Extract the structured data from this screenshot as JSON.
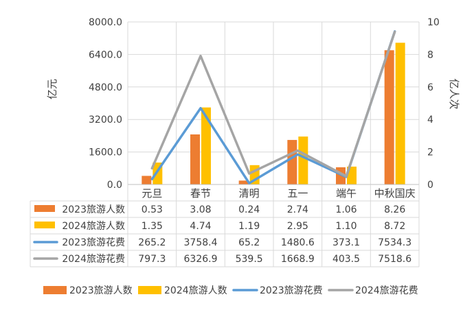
{
  "chart_data": {
    "type": "bar",
    "categories": [
      "元旦",
      "春节",
      "清明",
      "五一",
      "端午",
      "中秋国庆"
    ],
    "y_left": {
      "label": "亿元",
      "ticks": [
        "0.0",
        "1600.0",
        "3200.0",
        "4800.0",
        "6400.0",
        "8000.0"
      ],
      "ylim": [
        0,
        8000
      ]
    },
    "y_right": {
      "label": "亿人次",
      "ticks": [
        "0",
        "2",
        "4",
        "6",
        "8",
        "10"
      ],
      "ylim": [
        0,
        10
      ]
    },
    "grid": true,
    "legend_position": "bottom",
    "series": [
      {
        "name": "2023旅游人数",
        "kind": "bar",
        "axis": "right",
        "color": "#ED7D31",
        "values": [
          0.53,
          3.08,
          0.24,
          2.74,
          1.06,
          8.26
        ],
        "labels": [
          "0.53",
          "3.08",
          "0.24",
          "2.74",
          "1.06",
          "8.26"
        ]
      },
      {
        "name": "2024旅游人数",
        "kind": "bar",
        "axis": "right",
        "color": "#FFC000",
        "values": [
          1.35,
          4.74,
          1.19,
          2.95,
          1.1,
          8.72
        ],
        "labels": [
          "1.35",
          "4.74",
          "1.19",
          "2.95",
          "1.10",
          "8.72"
        ]
      },
      {
        "name": "2023旅游花费",
        "kind": "line",
        "axis": "left",
        "color": "#5B9BD5",
        "values": [
          265.2,
          3758.4,
          65.2,
          1480.6,
          373.1,
          7534.3
        ],
        "labels": [
          "265.2",
          "3758.4",
          "65.2",
          "1480.6",
          "373.1",
          "7534.3"
        ]
      },
      {
        "name": "2024旅游花费",
        "kind": "line",
        "axis": "left",
        "color": "#A5A5A5",
        "values": [
          797.3,
          6326.9,
          539.5,
          1668.9,
          403.5,
          7518.6
        ],
        "labels": [
          "797.3",
          "6326.9",
          "539.5",
          "1668.9",
          "403.5",
          "7518.6"
        ]
      }
    ]
  }
}
